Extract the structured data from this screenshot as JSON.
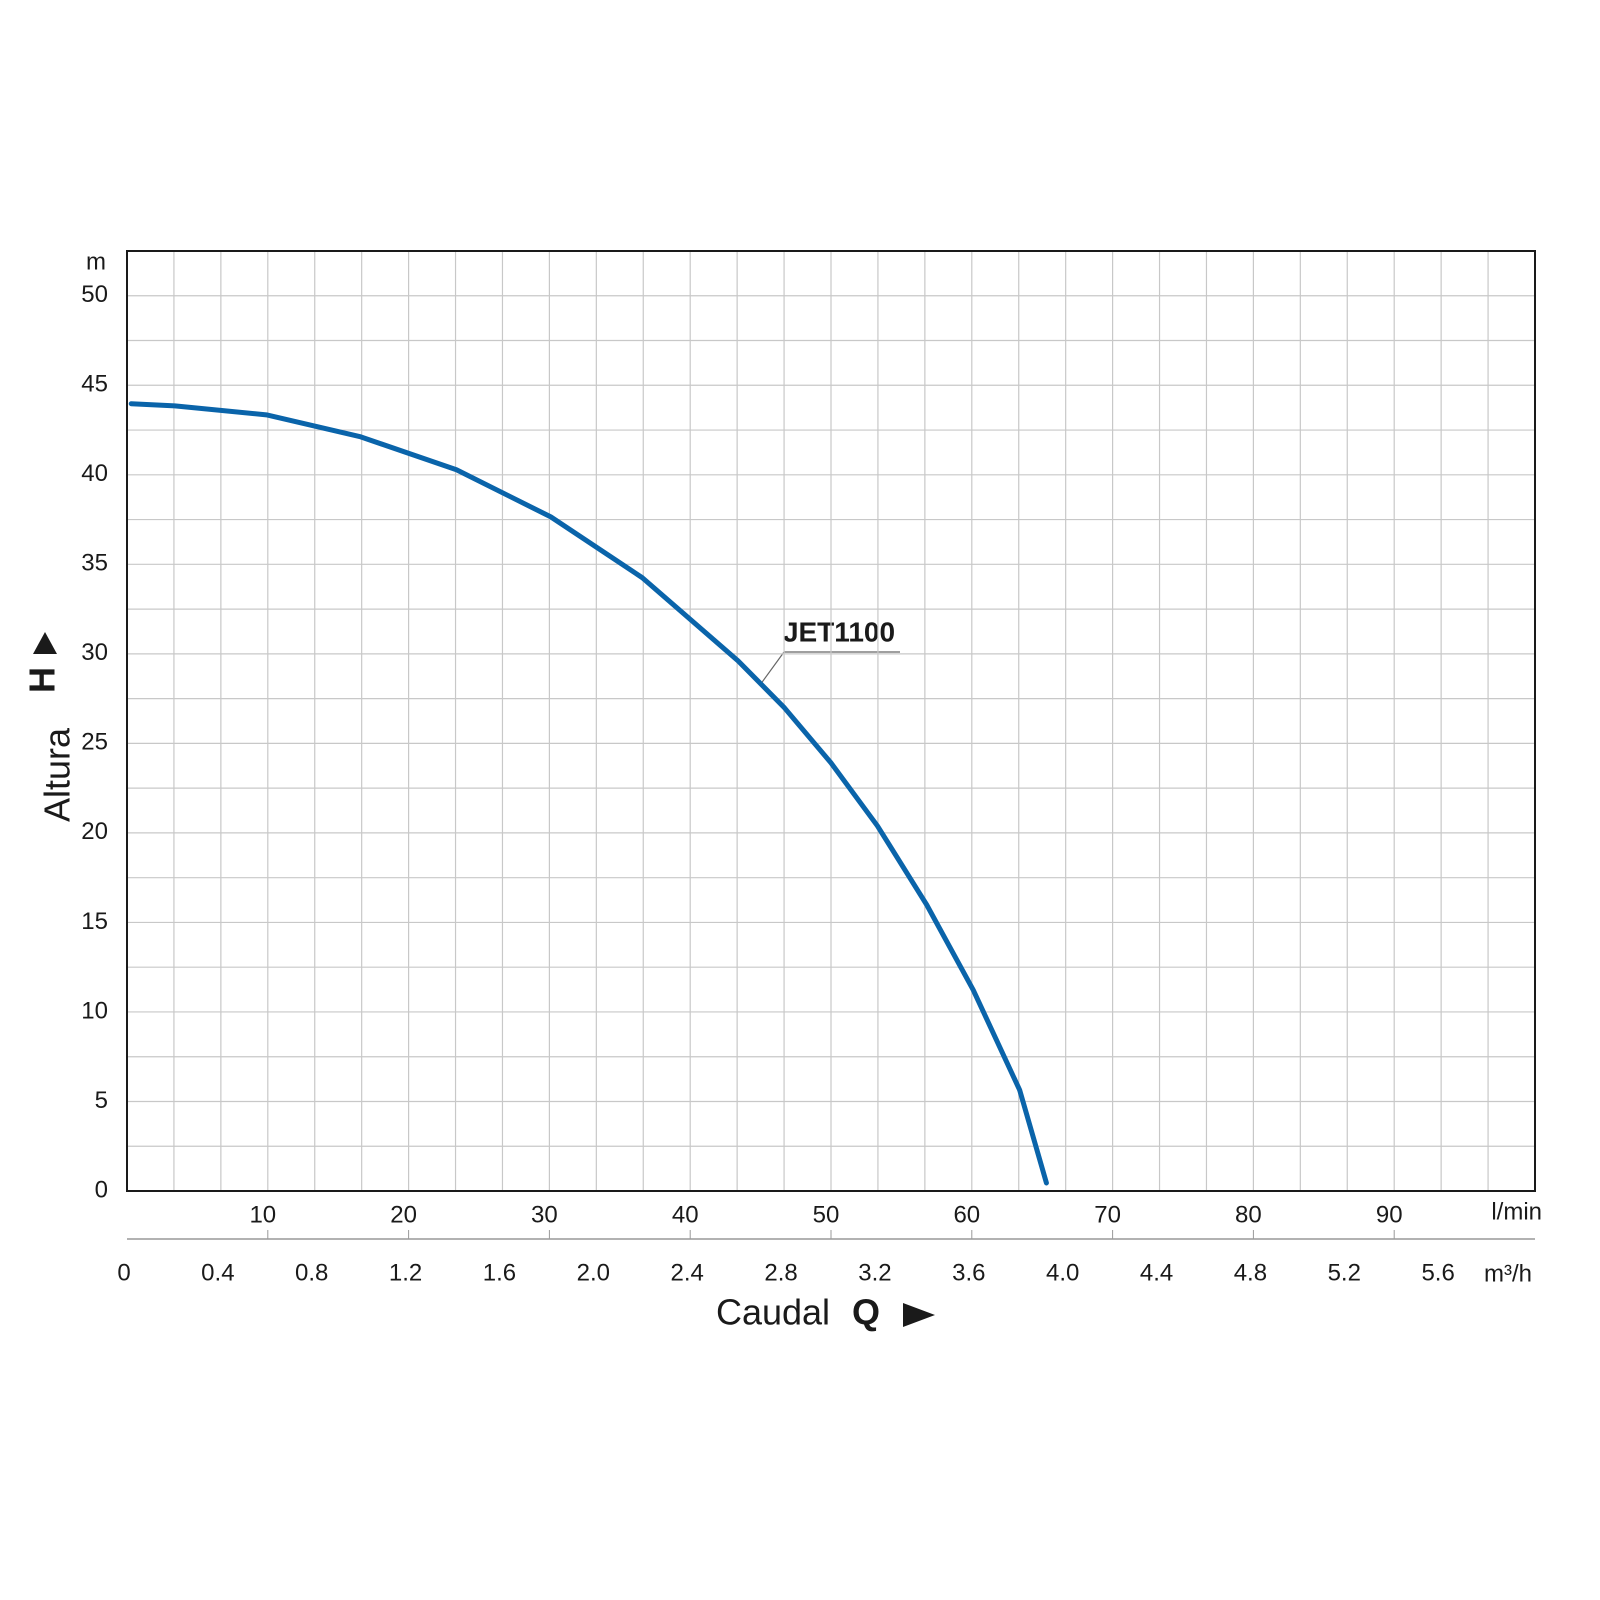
{
  "chart_data": {
    "type": "line",
    "y_title": "Altura",
    "y_symbol": "H",
    "y_unit": "m",
    "x_title": "Caudal",
    "x_symbol": "Q",
    "x_unit": "l/min",
    "x2_unit": "m³/h",
    "annotation": "JET1100",
    "x": [
      0.3,
      3.4,
      9.9,
      16.6,
      23.4,
      30.1,
      36.6,
      43.4,
      46.7,
      50.0,
      53.3,
      56.8,
      60.1,
      63.4,
      65.3
    ],
    "series": [
      {
        "name": "JET1100",
        "color": "#0a64aa",
        "values": [
          43.97,
          43.85,
          43.35,
          42.12,
          40.28,
          37.65,
          34.25,
          29.61,
          26.98,
          23.91,
          20.39,
          15.98,
          11.23,
          5.64,
          0.45
        ]
      }
    ],
    "xlim": [
      0,
      100
    ],
    "xticks": [
      10,
      20,
      30,
      40,
      50,
      60,
      70,
      80,
      90
    ],
    "x2lim": [
      0,
      6
    ],
    "x2ticks": [
      0,
      0.4,
      0.8,
      1.2,
      1.6,
      {
        "value": 2,
        "label": "2.0"
      },
      2.4,
      2.8,
      3.2,
      3.6,
      {
        "value": 4,
        "label": "4.0"
      },
      4.4,
      4.8,
      5.2,
      5.6
    ],
    "ylim": [
      0,
      52.5
    ],
    "yticks": [
      0,
      5,
      10,
      15,
      20,
      25,
      30,
      35,
      40,
      45,
      50
    ],
    "grid": true
  }
}
